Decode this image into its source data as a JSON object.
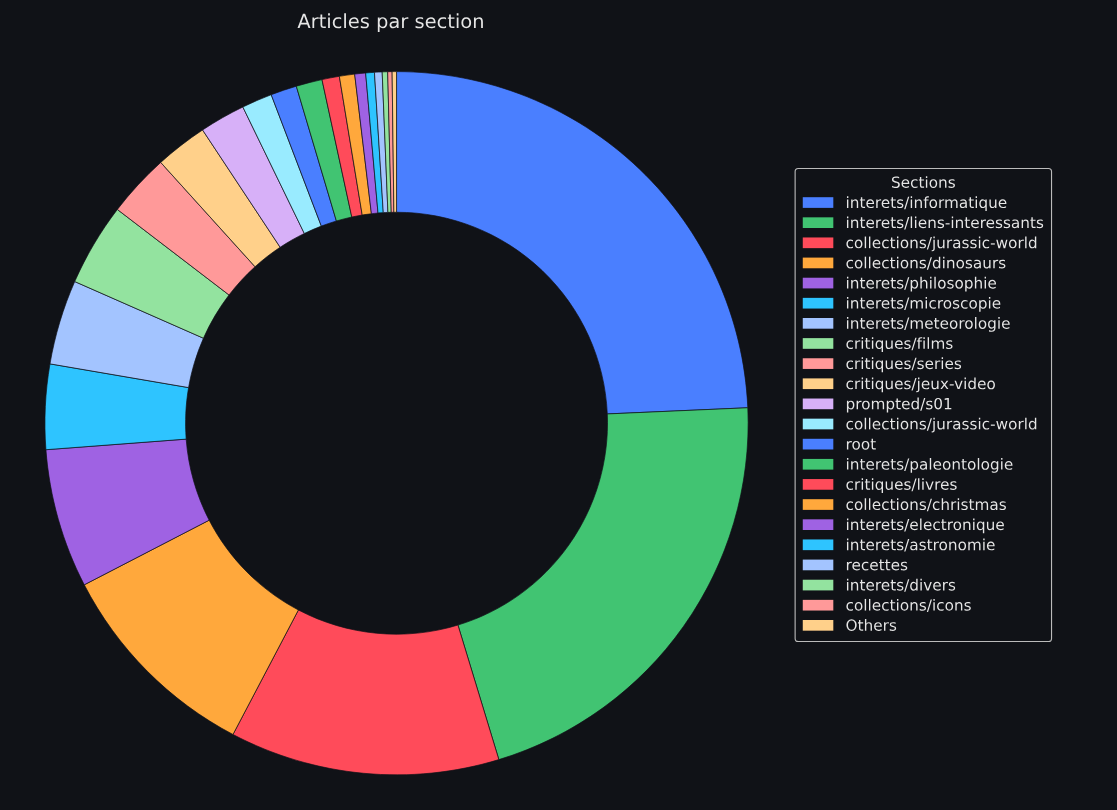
{
  "chart_data": {
    "type": "donut",
    "title": "Articles par section",
    "legend_title": "Sections",
    "legend": "right",
    "categories": [
      "interets/informatique",
      "interets/liens-interessants",
      "collections/jurassic-world",
      "collections/dinosaurs",
      "interets/philosophie",
      "interets/microscopie",
      "interets/meteorologie",
      "critiques/films",
      "critiques/series",
      "critiques/jeux-video",
      "prompted/s01",
      "collections/jurassic-world",
      "root",
      "interets/paleontologie",
      "critiques/livres",
      "collections/christmas",
      "interets/electronique",
      "interets/astronomie",
      "recettes",
      "interets/divers",
      "collections/icons",
      "Others"
    ],
    "values": [
      24.3,
      21.0,
      12.4,
      9.7,
      6.4,
      3.9,
      3.9,
      3.8,
      2.9,
      2.4,
      2.1,
      1.4,
      1.2,
      1.2,
      0.8,
      0.7,
      0.5,
      0.4,
      0.35,
      0.25,
      0.2,
      0.2
    ],
    "colors": [
      "#4a7fff",
      "#41c472",
      "#ff4b5a",
      "#ffa83c",
      "#9f62e3",
      "#2ec4ff",
      "#a3c4ff",
      "#93e39f",
      "#ff9999",
      "#ffd08a",
      "#d7b0f8",
      "#99ebff",
      "#4a7fff",
      "#41c472",
      "#ff4b5a",
      "#ffa83c",
      "#9f62e3",
      "#2ec4ff",
      "#a3c4ff",
      "#93e39f",
      "#ff9999",
      "#ffd08a"
    ]
  }
}
